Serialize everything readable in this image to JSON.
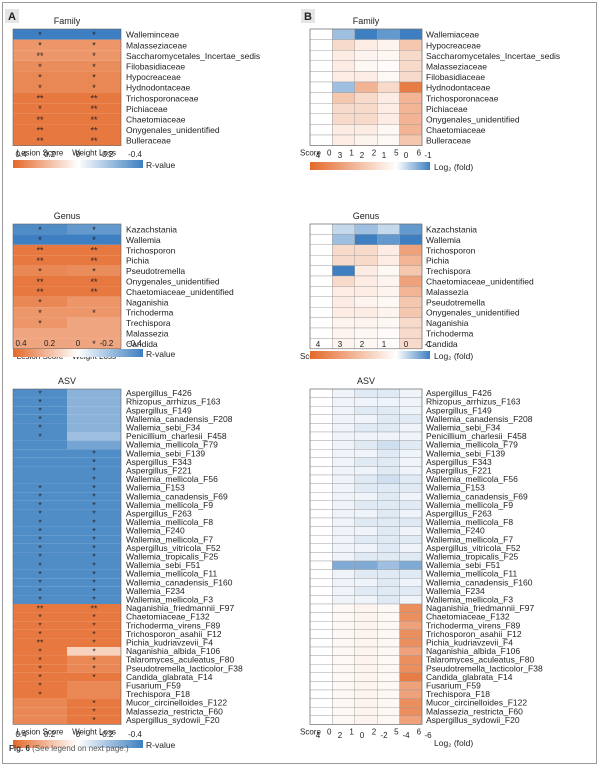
{
  "caption": {
    "label": "Fig. 6",
    "text": "(See legend on next page.)"
  },
  "panel_labels": {
    "a": "A",
    "b": "B"
  },
  "legend_text": {
    "rvalue": "R-value",
    "rvalue_ticks": [
      "0.4",
      "0.2",
      "0",
      "-0.2",
      "-0.4"
    ],
    "fold": "Log₂ (fold)",
    "fold_ticks_top": [
      "4",
      "3",
      "2",
      "1",
      "0",
      "-1"
    ],
    "fold_ticks_asv": [
      "4",
      "2",
      "0",
      "-2",
      "-4",
      "-6"
    ],
    "score_label": "Score",
    "score_ticks": [
      "0",
      "1",
      "2",
      "5",
      "6"
    ]
  },
  "colors": {
    "positive": "#e4692a",
    "negative": "#3d7fc0",
    "neutral": "#ffffff"
  },
  "chart_data": [
    {
      "type": "heatmap",
      "panel": "A",
      "title": "Family",
      "columns": [
        "Lesion Score",
        "Weight Loss"
      ],
      "rows": [
        "Walleminceae",
        "Malasseziaceae",
        "Saccharomycetales_Incertae_sedis",
        "Filobasidiaceae",
        "Hypocreaceae",
        "Hydnodontaceae",
        "Trichosporonaceae",
        "Pichiaceae",
        "Chaetomiaceae",
        "Onygenales_unidentified",
        "Bulleraceae"
      ],
      "values": [
        [
          -0.5,
          -0.5
        ],
        [
          0.35,
          0.35
        ],
        [
          0.35,
          0.35
        ],
        [
          0.38,
          0.38
        ],
        [
          0.4,
          0.4
        ],
        [
          0.4,
          0.4
        ],
        [
          0.45,
          0.45
        ],
        [
          0.45,
          0.45
        ],
        [
          0.45,
          0.45
        ],
        [
          0.45,
          0.45
        ],
        [
          0.45,
          0.45
        ]
      ],
      "marks": [
        [
          "*",
          "*"
        ],
        [
          "*",
          "*"
        ],
        [
          "**",
          "*"
        ],
        [
          "*",
          "*"
        ],
        [
          "*",
          "*"
        ],
        [
          "*",
          "*"
        ],
        [
          "**",
          "**"
        ],
        [
          "*",
          "**"
        ],
        [
          "**",
          "**"
        ],
        [
          "**",
          "**"
        ],
        [
          "**",
          "**"
        ]
      ],
      "colorbar": "R-value"
    },
    {
      "type": "heatmap",
      "panel": "A",
      "title": "Genus",
      "columns": [
        "Lesion Score",
        "Weight Loss"
      ],
      "rows": [
        "Kazachstania",
        "Wallemia",
        "Trichosporon",
        "Pichia",
        "Pseudotremella",
        "Onygenales_unidentified",
        "Chaetomiaceae_unidentified",
        "Naganishia",
        "Trichoderma",
        "Trechispora",
        "Malassezia",
        "Candida"
      ],
      "values": [
        [
          -0.45,
          -0.4
        ],
        [
          -0.5,
          -0.5
        ],
        [
          0.45,
          0.45
        ],
        [
          0.45,
          0.45
        ],
        [
          0.4,
          0.38
        ],
        [
          0.45,
          0.45
        ],
        [
          0.45,
          0.45
        ],
        [
          0.4,
          0.35
        ],
        [
          0.35,
          0.35
        ],
        [
          0.35,
          0.3
        ],
        [
          0.3,
          0.3
        ],
        [
          0.3,
          0.3
        ]
      ],
      "marks": [
        [
          "*",
          "*"
        ],
        [
          "*",
          "*"
        ],
        [
          "**",
          "**"
        ],
        [
          "**",
          "**"
        ],
        [
          "*",
          "*"
        ],
        [
          "**",
          "**"
        ],
        [
          "**",
          "**"
        ],
        [
          "*",
          ""
        ],
        [
          "*",
          "*"
        ],
        [
          "*",
          ""
        ],
        [
          "",
          ""
        ],
        [
          "",
          "*"
        ]
      ],
      "colorbar": "R-value"
    },
    {
      "type": "heatmap",
      "panel": "A",
      "title": "ASV",
      "columns": [
        "Lesion Score",
        "Weight Loss"
      ],
      "rows": [
        "Aspergillus_F426",
        "Rhizopus_arrhizus_F163",
        "Aspergillus_F149",
        "Wallemia_canadensis_F208",
        "Wallemia_sebi_F34",
        "Penicillium_charlesii_F458",
        "Wallemia_mellicola_F79",
        "Wallemia_sebi_F139",
        "Aspergillus_F343",
        "Aspergillus_F221",
        "Wallemia_mellicola_F56",
        "Wallemia_F153",
        "Wallemia_canadensis_F69",
        "Wallemia_mellicola_F9",
        "Aspergillus_F263",
        "Wallemia_mellicola_F8",
        "Wallemia_F240",
        "Wallemia_mellicola_F7",
        "Aspergillus_vitricola_F52",
        "Wallemia_tropicalis_F25",
        "Wallemia_sebi_F51",
        "Wallemia_mellicola_F11",
        "Wallemia_canadensis_F160",
        "Wallemia_F234",
        "Wallemia_mellicola_F3",
        "Naganishia_friedmannii_F97",
        "Chaetomiaceae_F132",
        "Trichoderma_virens_F89",
        "Trichosporon_asahii_F12",
        "Pichia_kudriavzevii_F4",
        "Naganishia_albida_F106",
        "Talaromyces_aculeatus_F80",
        "Pseudotremella_lacticolor_F38",
        "Candida_glabrata_F14",
        "Fusarium_F59",
        "Trechispora_F18",
        "Mucor_circinelloides_F122",
        "Malassezia_restricta_F60",
        "Aspergillus_sydowii_F20"
      ],
      "values": [
        [
          -0.45,
          -0.3
        ],
        [
          -0.45,
          -0.3
        ],
        [
          -0.45,
          -0.3
        ],
        [
          -0.45,
          -0.3
        ],
        [
          -0.45,
          -0.3
        ],
        [
          -0.45,
          -0.25
        ],
        [
          -0.45,
          -0.35
        ],
        [
          -0.45,
          -0.45
        ],
        [
          -0.45,
          -0.45
        ],
        [
          -0.45,
          -0.45
        ],
        [
          -0.45,
          -0.45
        ],
        [
          -0.45,
          -0.45
        ],
        [
          -0.45,
          -0.45
        ],
        [
          -0.45,
          -0.45
        ],
        [
          -0.45,
          -0.45
        ],
        [
          -0.45,
          -0.45
        ],
        [
          -0.45,
          -0.45
        ],
        [
          -0.45,
          -0.45
        ],
        [
          -0.45,
          -0.45
        ],
        [
          -0.45,
          -0.45
        ],
        [
          -0.45,
          -0.45
        ],
        [
          -0.45,
          -0.45
        ],
        [
          -0.45,
          -0.45
        ],
        [
          -0.45,
          -0.45
        ],
        [
          -0.45,
          -0.45
        ],
        [
          0.45,
          0.45
        ],
        [
          0.45,
          0.45
        ],
        [
          0.45,
          0.45
        ],
        [
          0.45,
          0.45
        ],
        [
          0.45,
          0.45
        ],
        [
          0.45,
          0.15
        ],
        [
          0.45,
          0.4
        ],
        [
          0.45,
          0.4
        ],
        [
          0.45,
          0.45
        ],
        [
          0.45,
          0.4
        ],
        [
          0.45,
          0.4
        ],
        [
          0.4,
          0.45
        ],
        [
          0.4,
          0.45
        ],
        [
          0.4,
          0.45
        ]
      ],
      "marks": [
        [
          "*",
          ""
        ],
        [
          "*",
          ""
        ],
        [
          "*",
          ""
        ],
        [
          "*",
          ""
        ],
        [
          "*",
          ""
        ],
        [
          "*",
          ""
        ],
        [
          "",
          ""
        ],
        [
          "",
          "*"
        ],
        [
          "",
          "*"
        ],
        [
          "",
          "*"
        ],
        [
          "",
          "*"
        ],
        [
          "*",
          "*"
        ],
        [
          "*",
          "*"
        ],
        [
          "*",
          "*"
        ],
        [
          "*",
          "*"
        ],
        [
          "*",
          "*"
        ],
        [
          "*",
          "*"
        ],
        [
          "*",
          "*"
        ],
        [
          "*",
          "*"
        ],
        [
          "*",
          "*"
        ],
        [
          "*",
          "*"
        ],
        [
          "*",
          "*"
        ],
        [
          "*",
          "*"
        ],
        [
          "*",
          "*"
        ],
        [
          "*",
          "*"
        ],
        [
          "**",
          "**"
        ],
        [
          "*",
          "*"
        ],
        [
          "*",
          "*"
        ],
        [
          "*",
          "*"
        ],
        [
          "**",
          "*"
        ],
        [
          "*",
          "*"
        ],
        [
          "*",
          "*"
        ],
        [
          "*",
          "*"
        ],
        [
          "*",
          "*"
        ],
        [
          "*",
          ""
        ],
        [
          "*",
          ""
        ],
        [
          "",
          "*"
        ],
        [
          "",
          "*"
        ],
        [
          "",
          "*"
        ]
      ],
      "colorbar": "R-value"
    },
    {
      "type": "heatmap",
      "panel": "B",
      "title": "Family",
      "columns": [
        "0",
        "1",
        "2",
        "5",
        "6"
      ],
      "rows": [
        "Wallemiaceae",
        "Hypocreaceae",
        "Saccharomycetales_Incertae_sedis",
        "Malasseziaceae",
        "Filobasidiaceae",
        "Hydnodontaceae",
        "Trichosporonaceae",
        "Pichiaceae",
        "Onygenales_unidentified",
        "Chaetomiaceae",
        "Bulleraceae"
      ],
      "values": [
        [
          0,
          -0.5,
          -1.5,
          -0.8,
          -2
        ],
        [
          0,
          1,
          0.5,
          0.3,
          1.5
        ],
        [
          0,
          0.5,
          0.3,
          0.2,
          1
        ],
        [
          0,
          0.5,
          0.2,
          0.1,
          1
        ],
        [
          0,
          0.5,
          0.5,
          0.2,
          1
        ],
        [
          0,
          -0.5,
          2,
          1,
          3.5
        ],
        [
          0,
          1.5,
          1,
          0.5,
          2
        ],
        [
          0,
          1,
          1,
          0.5,
          2
        ],
        [
          0,
          1,
          1,
          0.5,
          2
        ],
        [
          0,
          0.5,
          0.5,
          0.2,
          2
        ],
        [
          0,
          0.5,
          0.3,
          0.2,
          1.5
        ]
      ],
      "colorbar": "Log₂ (fold)",
      "range": [
        -1,
        4
      ]
    },
    {
      "type": "heatmap",
      "panel": "B",
      "title": "Genus",
      "columns": [
        "0",
        "1",
        "2",
        "5",
        "6"
      ],
      "rows": [
        "Kazachstania",
        "Wallemia",
        "Trichosporon",
        "Pichia",
        "Trechispora",
        "Chaetomiaceae_unidentified",
        "Malassezia",
        "Pseudotremella",
        "Onygenales_unidentified",
        "Naganishia",
        "Trichoderma",
        "Candida"
      ],
      "values": [
        [
          0,
          -0.3,
          -0.5,
          -0.3,
          -0.8
        ],
        [
          0,
          -0.5,
          -1.5,
          -0.8,
          -2
        ],
        [
          0,
          1,
          1,
          0.5,
          2.5
        ],
        [
          0,
          1,
          1,
          0.5,
          2
        ],
        [
          0,
          -1,
          0.5,
          0.2,
          1.5
        ],
        [
          0,
          1,
          0.5,
          0.3,
          2.5
        ],
        [
          0,
          0.5,
          0.5,
          0.3,
          2
        ],
        [
          0,
          0.5,
          0.3,
          0.2,
          1.5
        ],
        [
          0,
          0.5,
          0.5,
          0.3,
          1.5
        ],
        [
          0,
          0.3,
          0.3,
          0.2,
          1
        ],
        [
          0,
          0.3,
          0.2,
          0.1,
          1
        ],
        [
          0,
          0.3,
          0.2,
          0.1,
          1
        ]
      ],
      "colorbar": "Log₂ (fold)",
      "range": [
        -1,
        4
      ]
    },
    {
      "type": "heatmap",
      "panel": "B",
      "title": "ASV",
      "columns": [
        "0",
        "1",
        "2",
        "5",
        "6"
      ],
      "rows": [
        "Aspergillus_F426",
        "Rhizopus_arrhizus_F163",
        "Aspergillus_F149",
        "Wallemia_canadensis_F208",
        "Wallemia_sebi_F34",
        "Penicillium_charlesii_F458",
        "Wallemia_mellicola_F79",
        "Wallemia_sebi_F139",
        "Aspergillus_F343",
        "Aspergillus_F221",
        "Wallemia_mellicola_F56",
        "Wallemia_F153",
        "Wallemia_canadensis_F69",
        "Wallemia_mellicola_F9",
        "Aspergillus_F263",
        "Wallemia_mellicola_F8",
        "Wallemia_F240",
        "Wallemia_mellicola_F7",
        "Aspergillus_vitricola_F52",
        "Wallemia_tropicalis_F25",
        "Wallemia_sebi_F51",
        "Wallemia_mellicola_F11",
        "Wallemia_canadensis_F160",
        "Wallemia_F234",
        "Wallemia_mellicola_F3",
        "Naganishia_friedmannii_F97",
        "Chaetomiaceae_F132",
        "Trichoderma_virens_F89",
        "Trichosporon_asahii_F12",
        "Pichia_kudriavzevii_F4",
        "Naganishia_albida_F106",
        "Talaromyces_aculeatus_F80",
        "Pseudotremella_lacticolor_F38",
        "Candida_glabrata_F14",
        "Fusarium_F59",
        "Trechispora_F18",
        "Mucor_circinelloides_F122",
        "Malassezia_restricta_F60",
        "Aspergillus_sydowii_F20"
      ],
      "values": [
        [
          0,
          -0.5,
          -1,
          -1,
          -0.5
        ],
        [
          0,
          -0.5,
          -0.5,
          -0.5,
          -0.5
        ],
        [
          0,
          -0.5,
          -1,
          -1,
          -0.5
        ],
        [
          0,
          -0.5,
          -0.5,
          -1,
          -1
        ],
        [
          0,
          -0.5,
          -1,
          -1,
          -0.5
        ],
        [
          0,
          -0.5,
          -0.5,
          -0.5,
          -0.5
        ],
        [
          0,
          -0.5,
          -1,
          -1.5,
          -1
        ],
        [
          0,
          -0.5,
          -0.5,
          -1,
          -0.5
        ],
        [
          0,
          -0.5,
          -1,
          -1,
          -0.5
        ],
        [
          0,
          -0.5,
          -0.5,
          -1,
          -0.5
        ],
        [
          0,
          -0.5,
          -1,
          -1.5,
          -1
        ],
        [
          0,
          -0.5,
          -1,
          -1,
          -1
        ],
        [
          0,
          -0.5,
          -0.5,
          -1,
          -0.5
        ],
        [
          0,
          -0.5,
          -1,
          -1,
          -1
        ],
        [
          0,
          -0.5,
          -0.5,
          -1,
          -0.5
        ],
        [
          0,
          -0.5,
          -1,
          -1,
          -1
        ],
        [
          0,
          -0.5,
          -0.5,
          -1,
          -0.5
        ],
        [
          0,
          -0.5,
          -1,
          -1,
          -1
        ],
        [
          0,
          -0.5,
          -0.5,
          -1,
          -0.5
        ],
        [
          0,
          -0.5,
          -1,
          -1,
          -1
        ],
        [
          0,
          -4,
          -4,
          -3,
          -4
        ],
        [
          0,
          -0.5,
          -1,
          -1,
          -1
        ],
        [
          0,
          -0.5,
          -0.5,
          -1,
          -0.5
        ],
        [
          0,
          -0.5,
          -1,
          -1,
          -1
        ],
        [
          0,
          -0.5,
          -0.5,
          -1,
          -0.5
        ],
        [
          0,
          0.2,
          0.3,
          0.2,
          3
        ],
        [
          0,
          0.2,
          0.3,
          0.2,
          3
        ],
        [
          0,
          0.2,
          0.3,
          0.2,
          2.5
        ],
        [
          0,
          0.2,
          0.3,
          0.2,
          3
        ],
        [
          0,
          0.2,
          0.3,
          0.2,
          3
        ],
        [
          0,
          0.2,
          0.3,
          0.2,
          2.5
        ],
        [
          0,
          0.2,
          0.3,
          0.2,
          3
        ],
        [
          0,
          0.2,
          0.3,
          0.2,
          3
        ],
        [
          0,
          0.2,
          0.3,
          0.2,
          3.5
        ],
        [
          0,
          0.2,
          0.3,
          0.2,
          2.5
        ],
        [
          0,
          0.2,
          0.3,
          0.2,
          2.5
        ],
        [
          0,
          0.2,
          0.3,
          0.2,
          3
        ],
        [
          0,
          0.2,
          0.3,
          0.2,
          3
        ],
        [
          0,
          0.2,
          0.3,
          0.2,
          2.5
        ]
      ],
      "colorbar": "Log₂ (fold)",
      "range": [
        -6,
        4
      ]
    }
  ]
}
